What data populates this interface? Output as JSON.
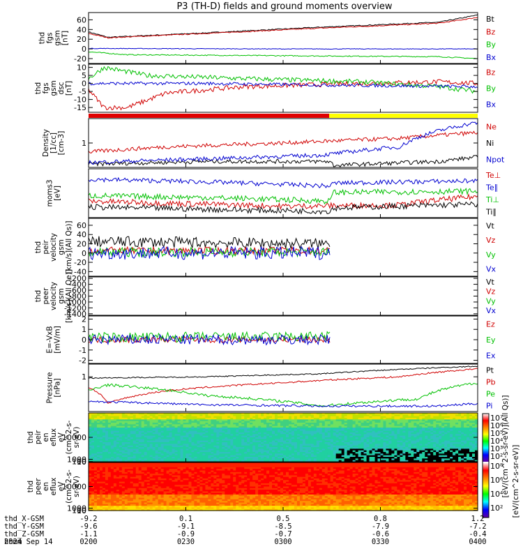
{
  "title": "P3 (TH-D) fields and ground moments overview",
  "chart_data": [
    {
      "type": "line",
      "ylabel": [
        "thd",
        "fgs",
        "gsm",
        "[nT]"
      ],
      "yticks": [
        -20,
        0,
        20,
        40,
        60
      ],
      "ylim": [
        -30,
        75
      ],
      "series": [
        {
          "name": "Bt",
          "color": "#000000",
          "knots": [
            [
              0,
              35
            ],
            [
              0.05,
              24
            ],
            [
              0.3,
              33
            ],
            [
              0.6,
              45
            ],
            [
              0.9,
              55
            ],
            [
              1,
              70
            ]
          ],
          "noise": 1
        },
        {
          "name": "Bz",
          "color": "#d00000",
          "knots": [
            [
              0,
              32
            ],
            [
              0.05,
              23
            ],
            [
              0.3,
              32
            ],
            [
              0.6,
              43
            ],
            [
              0.9,
              53
            ],
            [
              1,
              65
            ]
          ],
          "noise": 1
        },
        {
          "name": "By",
          "color": "#00c000",
          "knots": [
            [
              0,
              -6
            ],
            [
              0.1,
              -12
            ],
            [
              0.5,
              -14
            ],
            [
              0.9,
              -16
            ],
            [
              1,
              -20
            ]
          ],
          "noise": 1
        },
        {
          "name": "Bx",
          "color": "#0000d0",
          "knots": [
            [
              0,
              1
            ],
            [
              0.5,
              0
            ],
            [
              1,
              0
            ]
          ],
          "noise": 0.6
        }
      ]
    },
    {
      "type": "line",
      "ylabel": [
        "thd",
        "fgs",
        "gsm",
        "dsc",
        "[nT]"
      ],
      "yticks": [
        -15,
        -10,
        -5,
        0,
        5,
        10
      ],
      "ylim": [
        -18,
        12
      ],
      "series": [
        {
          "name": "Bz",
          "color": "#d00000",
          "knots": [
            [
              0,
              -4
            ],
            [
              0.04,
              -15
            ],
            [
              0.1,
              -15
            ],
            [
              0.2,
              -6
            ],
            [
              0.4,
              -2
            ],
            [
              0.7,
              0
            ],
            [
              0.9,
              1
            ],
            [
              1,
              0
            ]
          ],
          "noise": 1.5
        },
        {
          "name": "By",
          "color": "#00c000",
          "knots": [
            [
              0,
              3
            ],
            [
              0.04,
              10
            ],
            [
              0.15,
              5
            ],
            [
              0.4,
              3
            ],
            [
              0.7,
              1
            ],
            [
              0.9,
              -2
            ],
            [
              1,
              -5
            ]
          ],
          "noise": 1.5
        },
        {
          "name": "Bx",
          "color": "#0000d0",
          "knots": [
            [
              0,
              0
            ],
            [
              0.3,
              0
            ],
            [
              0.6,
              -1
            ],
            [
              1,
              -2
            ]
          ],
          "noise": 1
        }
      ]
    },
    {
      "type": "line",
      "log": true,
      "ylabel": [
        "Density",
        "[1/cc]",
        "[cm-3]"
      ],
      "yticks": [
        1
      ],
      "ylim": [
        0.25,
        4
      ],
      "series": [
        {
          "name": "Ne",
          "color": "#d00000",
          "knots": [
            [
              0,
              0.6
            ],
            [
              0.2,
              0.8
            ],
            [
              0.5,
              1
            ],
            [
              0.8,
              1.3
            ],
            [
              1,
              1.8
            ]
          ],
          "noise": 0.05
        },
        {
          "name": "Ni",
          "color": "#000000",
          "knots": [
            [
              0,
              0.3
            ],
            [
              0.3,
              0.35
            ],
            [
              0.62,
              0.35
            ],
            [
              0.63,
              0.28
            ],
            [
              0.9,
              0.35
            ],
            [
              1,
              0.45
            ]
          ],
          "noise": 0.05
        },
        {
          "name": "Npot",
          "color": "#0000d0",
          "knots": [
            [
              0,
              0.33
            ],
            [
              0.35,
              0.42
            ],
            [
              0.6,
              0.5
            ],
            [
              0.8,
              0.8
            ],
            [
              1,
              3.2
            ]
          ],
          "noise": 0.05
        }
      ]
    },
    {
      "type": "line",
      "log": true,
      "ylabel": [
        "moms3",
        "[eV]"
      ],
      "yticks": [],
      "ylim": [
        120,
        6000
      ],
      "series": [
        {
          "name": "Te⊥",
          "color": "#d00000",
          "knots": [
            [
              0,
              450
            ],
            [
              0.2,
              380
            ],
            [
              0.5,
              300
            ],
            [
              0.8,
              330
            ],
            [
              1,
              650
            ]
          ],
          "noise": 0.1
        },
        {
          "name": "Te∥",
          "color": "#0000d0",
          "knots": [
            [
              0,
              2600
            ],
            [
              0.3,
              2100
            ],
            [
              0.62,
              1500
            ],
            [
              0.63,
              1900
            ],
            [
              1,
              2300
            ]
          ],
          "noise": 0.08
        },
        {
          "name": "Ti⊥",
          "color": "#00c000",
          "knots": [
            [
              0,
              700
            ],
            [
              0.3,
              600
            ],
            [
              0.62,
              450
            ],
            [
              0.63,
              900
            ],
            [
              1,
              1000
            ]
          ],
          "noise": 0.1
        },
        {
          "name": "Ti∥",
          "color": "#000000",
          "knots": [
            [
              0,
              280
            ],
            [
              0.4,
              220
            ],
            [
              0.62,
              200
            ],
            [
              0.63,
              260
            ],
            [
              1,
              350
            ]
          ],
          "noise": 0.1
        }
      ]
    },
    {
      "type": "line",
      "ylabel": [
        "thd",
        "peir",
        "velocity",
        "gsm",
        "[km/s](All Qs)]"
      ],
      "yticks": [
        -40,
        -20,
        0,
        20,
        40,
        60
      ],
      "ylim": [
        -50,
        75
      ],
      "xmax": 0.62,
      "series": [
        {
          "name": "Vt",
          "color": "#000000",
          "knots": [
            [
              0,
              25
            ],
            [
              0.62,
              20
            ]
          ],
          "noise": 12
        },
        {
          "name": "Vz",
          "color": "#d00000",
          "knots": [
            [
              0,
              5
            ],
            [
              0.62,
              5
            ]
          ],
          "noise": 8
        },
        {
          "name": "Vy",
          "color": "#00c000",
          "knots": [
            [
              0,
              2
            ],
            [
              0.62,
              2
            ]
          ],
          "noise": 10
        },
        {
          "name": "Vx",
          "color": "#0000d0",
          "knots": [
            [
              0,
              0
            ],
            [
              0.62,
              0
            ]
          ],
          "noise": 14
        }
      ]
    },
    {
      "type": "line",
      "ylabel": [
        "thd",
        "peer",
        "velocity",
        "gsm",
        "[km/s](All Qe)]"
      ],
      "yticks": [
        -1400,
        -1200,
        -1000,
        -800,
        -600,
        -400,
        -200
      ],
      "ylim": [
        -1450,
        -150
      ],
      "series": [
        {
          "name": "Vt",
          "color": "#000000",
          "knots": [],
          "noise": 0
        },
        {
          "name": "Vz",
          "color": "#d00000",
          "knots": [],
          "noise": 0
        },
        {
          "name": "Vy",
          "color": "#00c000",
          "knots": [],
          "noise": 0
        },
        {
          "name": "Vx",
          "color": "#0000d0",
          "knots": [],
          "noise": 0
        }
      ]
    },
    {
      "type": "line",
      "ylabel": [
        "E=-VxB",
        "[mV/m]"
      ],
      "yticks": [
        -2,
        -1,
        0,
        1,
        2
      ],
      "ylim": [
        -2.3,
        2.3
      ],
      "xmax": 0.62,
      "series": [
        {
          "name": "Ez",
          "color": "#d00000",
          "knots": [
            [
              0,
              0
            ],
            [
              0.62,
              0
            ]
          ],
          "noise": 0.3
        },
        {
          "name": "Ey",
          "color": "#00c000",
          "knots": [
            [
              0,
              0.2
            ],
            [
              0.62,
              0.3
            ]
          ],
          "noise": 0.5
        },
        {
          "name": "Ex",
          "color": "#0000d0",
          "knots": [
            [
              0,
              0
            ],
            [
              0.62,
              0
            ]
          ],
          "noise": 0.5
        }
      ]
    },
    {
      "type": "line",
      "log": true,
      "ylabel": [
        "Pressure",
        "[nPa]"
      ],
      "yticks": [
        1
      ],
      "ylim": [
        0.05,
        3
      ],
      "series": [
        {
          "name": "Pt",
          "color": "#000000",
          "knots": [
            [
              0,
              0.9
            ],
            [
              0.3,
              1
            ],
            [
              0.6,
              1.3
            ],
            [
              0.9,
              2.2
            ],
            [
              1,
              2.5
            ]
          ],
          "noise": 0.02
        },
        {
          "name": "Pb",
          "color": "#d00000",
          "knots": [
            [
              0,
              0.4
            ],
            [
              0.05,
              0.1
            ],
            [
              0.2,
              0.3
            ],
            [
              0.5,
              0.6
            ],
            [
              0.8,
              1
            ],
            [
              1,
              2
            ]
          ],
          "noise": 0.03
        },
        {
          "name": "Pe",
          "color": "#00c000",
          "knots": [
            [
              0,
              0.3
            ],
            [
              0.05,
              0.5
            ],
            [
              0.3,
              0.2
            ],
            [
              0.6,
              0.08
            ],
            [
              0.85,
              0.15
            ],
            [
              1,
              0.6
            ]
          ],
          "noise": 0.05
        },
        {
          "name": "Pi",
          "color": "#0000d0",
          "knots": [
            [
              0,
              0.12
            ],
            [
              0.3,
              0.09
            ],
            [
              0.6,
              0.08
            ],
            [
              0.9,
              0.08
            ],
            [
              1,
              0.1
            ]
          ],
          "noise": 0.04
        }
      ]
    },
    {
      "type": "heatmap",
      "ylabel": [
        "thd",
        "peir",
        "en",
        "eflux",
        "eV",
        "(cm^2-s-",
        "sr-eV)"
      ],
      "yticks": [
        10,
        100,
        1000,
        10000
      ],
      "ylim": [
        8,
        20000
      ],
      "colorbar": "ions",
      "voidstart": 0.63
    },
    {
      "type": "heatmap",
      "ylabel": [
        "thd",
        "peer",
        "en",
        "eflux",
        "eV",
        "(cm^2-s-",
        "sr-eV)"
      ],
      "yticks": [
        10,
        100,
        1000,
        10000
      ],
      "ylim": [
        8,
        20000
      ],
      "colorbar": "electrons"
    }
  ],
  "colorbar": {
    "ticks_top": [
      "10⁷",
      "10⁶",
      "10⁵",
      "10⁴",
      "10³",
      "10²"
    ],
    "ticks_bottom": [
      "10⁸",
      "10⁶",
      "10⁴",
      "10²"
    ],
    "label": "[eV/(cm^2-s-sr-eV)]",
    "sublabel": "[eV/(cm^2-s-sr-eV)](All Qs)]"
  },
  "x_axis": {
    "ticks": [
      "0200",
      "0230",
      "0300",
      "0330",
      "0400"
    ],
    "rows": [
      {
        "label": "thd_X-GSM",
        "values": [
          "-9.2",
          "0.1",
          "0.5",
          "0.8",
          "1.2"
        ]
      },
      {
        "label": "thd_Y-GSM",
        "values": [
          "-9.6",
          "-9.1",
          "-8.5",
          "-7.9",
          "-7.2"
        ]
      },
      {
        "label": "thd_Z-GSM",
        "values": [
          "-1.1",
          "-0.9",
          "-0.7",
          "-0.6",
          "-0.4"
        ]
      },
      {
        "label": "hhmm",
        "values": [
          "0200",
          "0230",
          "0300",
          "0330",
          "0400"
        ]
      }
    ],
    "date": "2024 Sep 14"
  },
  "bar_colors": {
    "left": "#e00000",
    "right": "#ffff00"
  }
}
